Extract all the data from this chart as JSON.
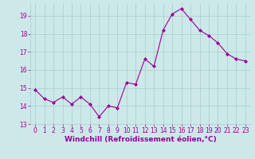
{
  "x": [
    0,
    1,
    2,
    3,
    4,
    5,
    6,
    7,
    8,
    9,
    10,
    11,
    12,
    13,
    14,
    15,
    16,
    17,
    18,
    19,
    20,
    21,
    22,
    23
  ],
  "y": [
    14.9,
    14.4,
    14.2,
    14.5,
    14.1,
    14.5,
    14.1,
    13.4,
    14.0,
    13.9,
    15.3,
    15.2,
    16.6,
    16.2,
    18.2,
    19.1,
    19.4,
    18.8,
    18.2,
    17.9,
    17.5,
    16.9,
    16.6,
    16.5
  ],
  "line_color": "#990099",
  "marker": "D",
  "marker_size": 2,
  "bg_color": "#cce8e8",
  "grid_color": "#aacccc",
  "xlabel": "Windchill (Refroidissement éolien,°C)",
  "xlabel_fontsize": 6.5,
  "tick_fontsize": 5.5,
  "ylim": [
    13,
    19.7
  ],
  "xlim": [
    -0.5,
    23.5
  ],
  "yticks": [
    13,
    14,
    15,
    16,
    17,
    18,
    19
  ],
  "xticks": [
    0,
    1,
    2,
    3,
    4,
    5,
    6,
    7,
    8,
    9,
    10,
    11,
    12,
    13,
    14,
    15,
    16,
    17,
    18,
    19,
    20,
    21,
    22,
    23
  ]
}
